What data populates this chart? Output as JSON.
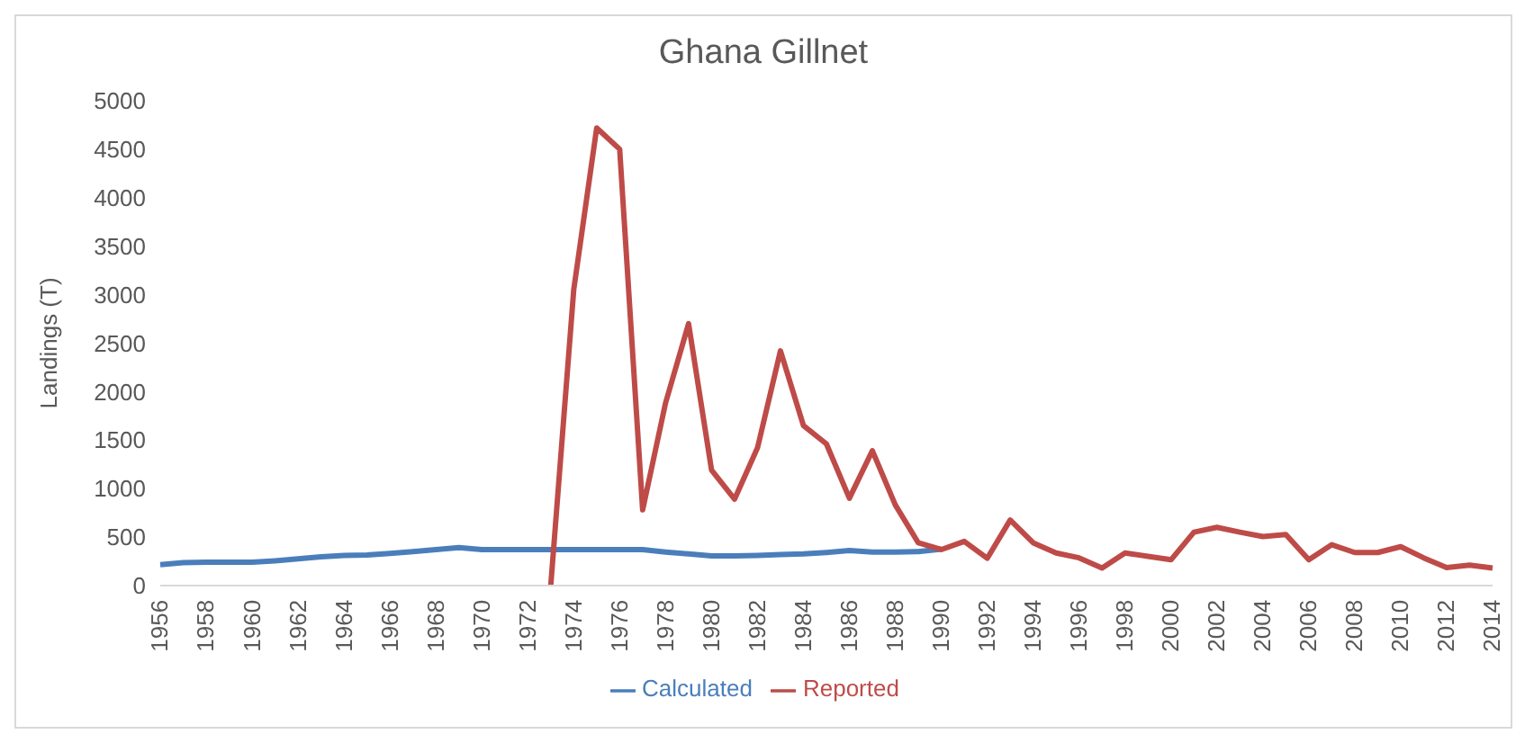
{
  "chart_data": {
    "type": "line",
    "title": "Ghana Gillnet",
    "ylabel": "Landings (T)",
    "categories": [
      "1956",
      null,
      "1958",
      null,
      "1960",
      null,
      "1962",
      null,
      "1964",
      null,
      "1966",
      null,
      "1968",
      null,
      "1970",
      null,
      "1972",
      null,
      "1974",
      null,
      "1976",
      null,
      "1978",
      null,
      "1980",
      null,
      "1982",
      null,
      "1984",
      null,
      "1986",
      null,
      "1988",
      null,
      "1990",
      null,
      "1992",
      null,
      "1994",
      null,
      "1996",
      null,
      "1998",
      null,
      "2000",
      null,
      "2002",
      null,
      "2004",
      null,
      "2006",
      null,
      "2008",
      null,
      "2010",
      null,
      "2012",
      null,
      "2014"
    ],
    "series": [
      {
        "name": "Calculated",
        "color": "#4a7ebb",
        "values": [
          215,
          235,
          240,
          240,
          240,
          255,
          275,
          295,
          310,
          315,
          330,
          350,
          370,
          390,
          370,
          370,
          370,
          370,
          370,
          370,
          370,
          370,
          345,
          325,
          305,
          305,
          310,
          320,
          325,
          340,
          360,
          345,
          345,
          350,
          375,
          null,
          null,
          null,
          null,
          null,
          null,
          null,
          null,
          null,
          null,
          null,
          null,
          null,
          null,
          null,
          null,
          null,
          null,
          null,
          null,
          null,
          null,
          null,
          null
        ]
      },
      {
        "name": "Reported",
        "color": "#be4b48",
        "values": [
          null,
          null,
          null,
          null,
          null,
          null,
          null,
          null,
          null,
          null,
          null,
          null,
          null,
          null,
          null,
          null,
          null,
          0,
          3050,
          4720,
          4500,
          780,
          1885,
          2700,
          1190,
          890,
          1420,
          2420,
          1650,
          1460,
          900,
          1390,
          830,
          440,
          370,
          455,
          280,
          675,
          440,
          335,
          285,
          180,
          335,
          300,
          265,
          550,
          600,
          550,
          505,
          525,
          265,
          420,
          340,
          340,
          400,
          285,
          185,
          210,
          180
        ]
      }
    ],
    "ylim": [
      0,
      5000
    ],
    "yticks": [
      0,
      500,
      1000,
      1500,
      2000,
      2500,
      3000,
      3500,
      4000,
      4500,
      5000
    ],
    "legend": "bottom",
    "line_style": "solid",
    "marker": "none"
  }
}
